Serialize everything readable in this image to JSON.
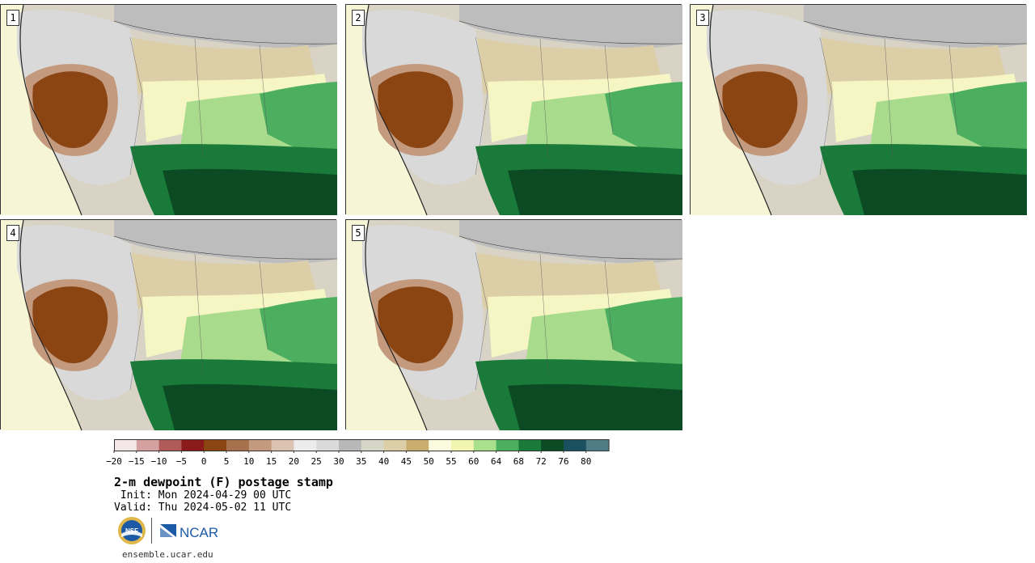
{
  "panels": [
    {
      "label": "1"
    },
    {
      "label": "2"
    },
    {
      "label": "3"
    },
    {
      "label": "4"
    },
    {
      "label": "5"
    }
  ],
  "colorbar": {
    "colors": [
      "#f3e6e6",
      "#d4a0a0",
      "#b05a5a",
      "#8b1a1a",
      "#8b4513",
      "#a8714e",
      "#c49a7e",
      "#dcc2b0",
      "#ececec",
      "#dadada",
      "#b8b8b8",
      "#d6d6c8",
      "#dccfa8",
      "#c9ad6e",
      "#fbfbe0",
      "#f2f5b0",
      "#a8e08c",
      "#4caf60",
      "#1a7a3a",
      "#0b4a22",
      "#1a5060",
      "#4f7b84"
    ],
    "ticks": [
      "−20",
      "−15",
      "−10",
      "−5",
      "0",
      "5",
      "10",
      "15",
      "20",
      "25",
      "30",
      "35",
      "40",
      "45",
      "50",
      "55",
      "60",
      "64",
      "68",
      "72",
      "76",
      "80"
    ]
  },
  "title": "2-m dewpoint (F) postage stamp",
  "init": " Init: Mon 2024-04-29 00 UTC",
  "valid": "Valid: Thu 2024-05-02 11 UTC",
  "logos": {
    "nsf": "NSF",
    "ncar": "NCAR"
  },
  "site": "ensemble.ucar.edu"
}
